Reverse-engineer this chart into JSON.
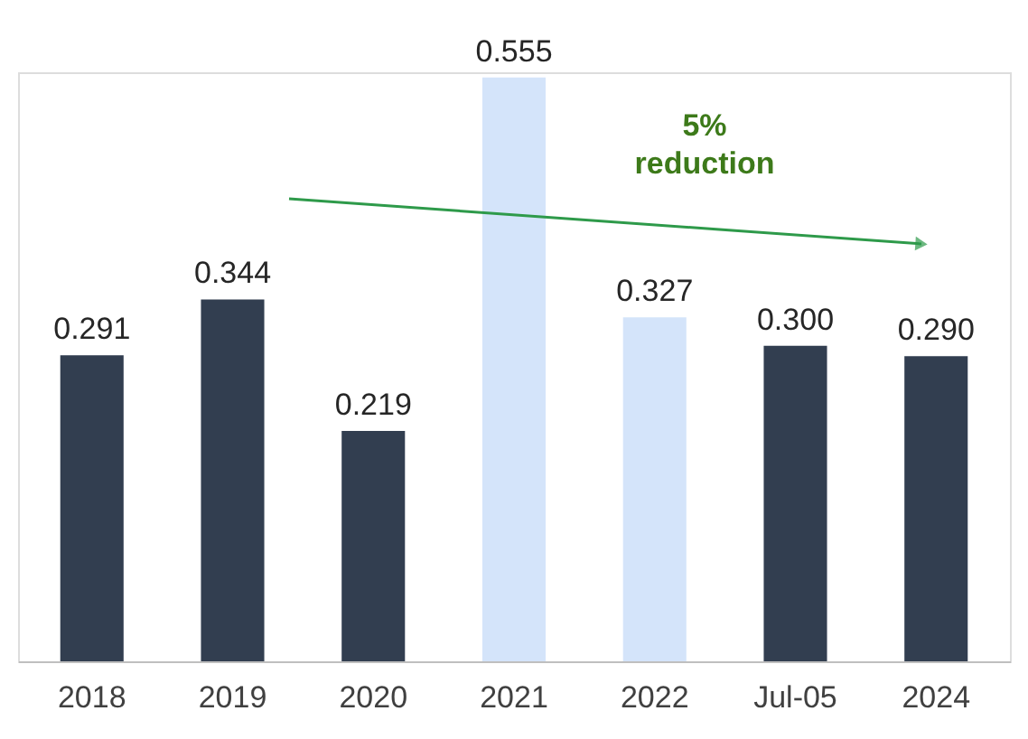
{
  "chart_data": {
    "type": "bar",
    "categories": [
      "2018",
      "2019",
      "2020",
      "2021",
      "2022",
      "Jul-05",
      "2024"
    ],
    "values": [
      0.291,
      0.344,
      0.219,
      0.555,
      0.327,
      0.3,
      0.29
    ],
    "colors": [
      "#323e50",
      "#323e50",
      "#323e50",
      "#d4e4fa",
      "#d4e4fa",
      "#323e50",
      "#323e50"
    ],
    "value_labels": [
      "0.291",
      "0.344",
      "0.219",
      "0.555",
      "0.327",
      "0.300",
      "0.290"
    ],
    "ylim": [
      0,
      0.56
    ],
    "grid": false,
    "tick_labels": "x",
    "annotations": [
      "5%\nreduction"
    ]
  }
}
